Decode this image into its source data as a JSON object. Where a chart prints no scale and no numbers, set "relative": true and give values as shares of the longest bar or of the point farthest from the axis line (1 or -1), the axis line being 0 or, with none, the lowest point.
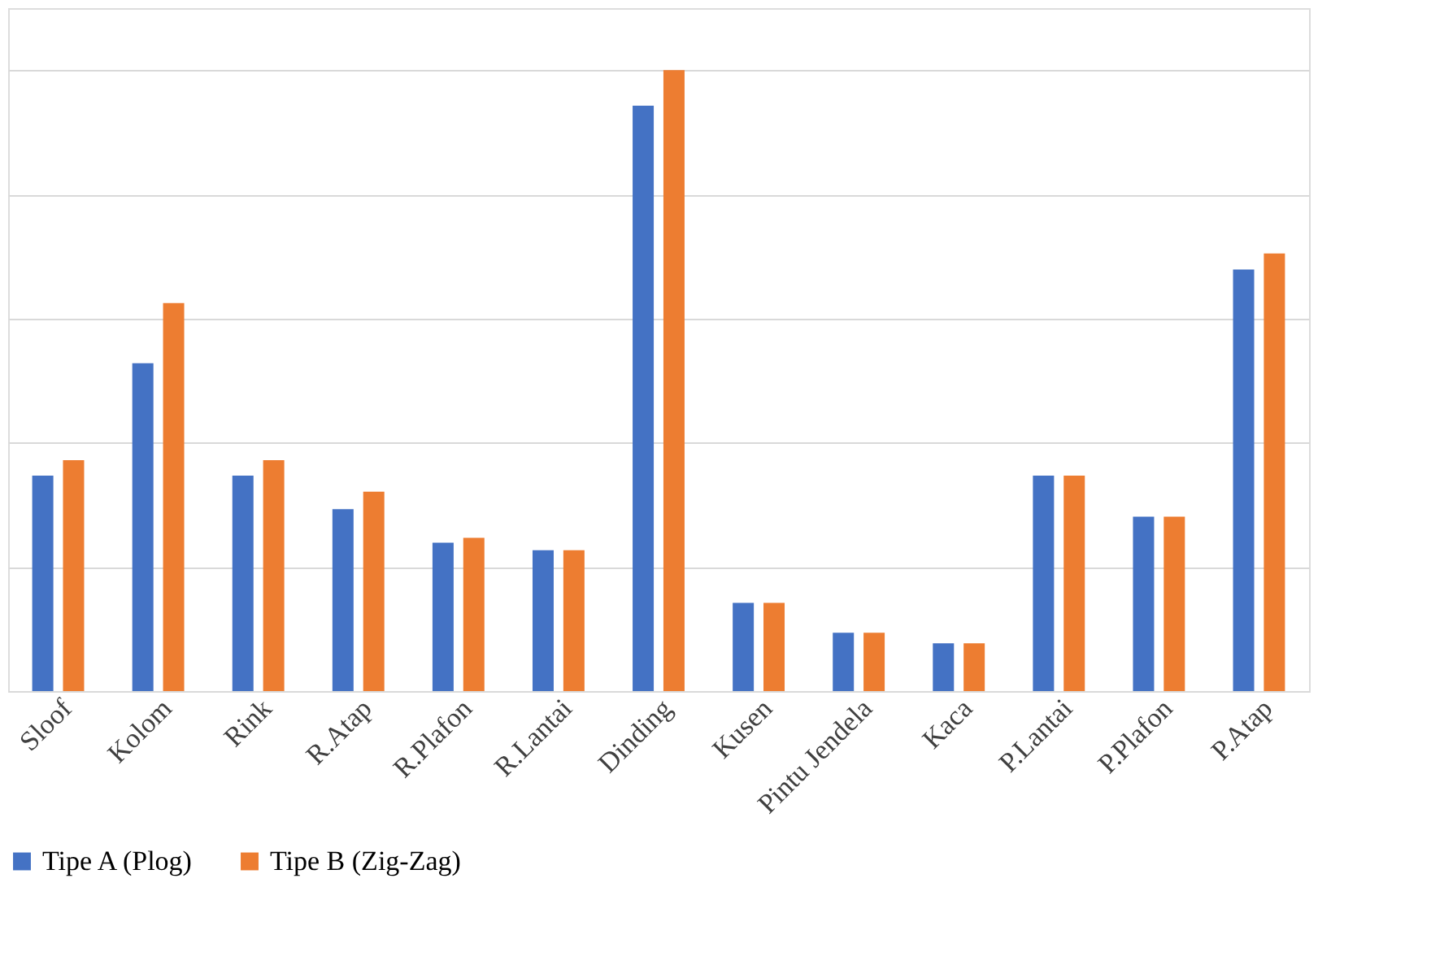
{
  "chart_data": {
    "type": "bar",
    "relative": true,
    "grid": "y",
    "legend": "bottom",
    "categories": [
      "Sloof",
      "Kolom",
      "Rink",
      "R.Atap",
      "R.Plafon",
      "R.Lantai",
      "Dinding",
      "Kusen",
      "Pintu Jendela",
      "Kaca",
      "P.Lantai",
      "P.Plafon",
      "P.Atap"
    ],
    "series": [
      {
        "name": "Tipe A (Plog)",
        "color": "#4472c4",
        "values": [
          0.347,
          0.528,
          0.347,
          0.293,
          0.239,
          0.227,
          0.943,
          0.142,
          0.094,
          0.077,
          0.347,
          0.281,
          0.679
        ]
      },
      {
        "name": "Tipe B (Zig-Zag)",
        "color": "#ed7d31",
        "values": [
          0.372,
          0.625,
          0.372,
          0.321,
          0.247,
          0.227,
          1,
          0.142,
          0.094,
          0.077,
          0.347,
          0.281,
          0.705
        ]
      }
    ]
  }
}
